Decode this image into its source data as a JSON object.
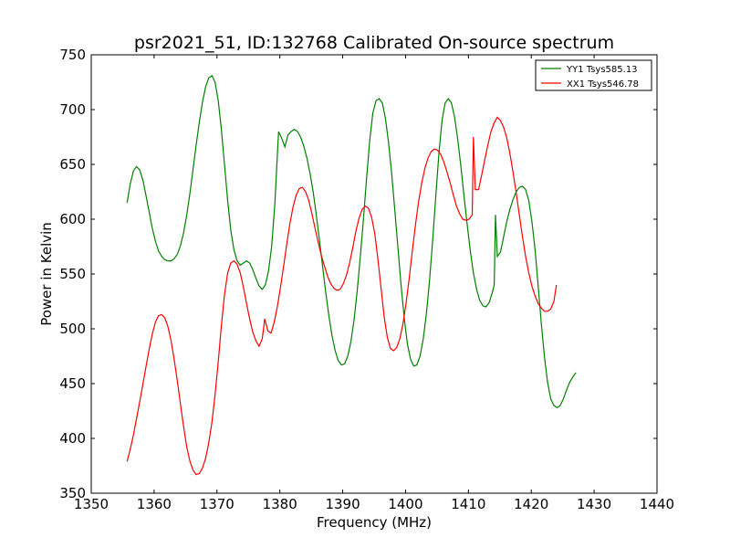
{
  "chart_data": {
    "type": "line",
    "title": "psr2021_51, ID:132768 Calibrated On-source spectrum",
    "xlabel": "Frequency (MHz)",
    "ylabel": "Power in Kelvin",
    "xlim": [
      1350,
      1440
    ],
    "ylim": [
      350,
      750
    ],
    "xticks": [
      1350,
      1360,
      1370,
      1380,
      1390,
      1400,
      1410,
      1420,
      1430,
      1440
    ],
    "yticks": [
      350,
      400,
      450,
      500,
      550,
      600,
      650,
      700,
      750
    ],
    "grid": false,
    "legend_position": "top-right",
    "series": [
      {
        "name": "YY1 Tsys585.13",
        "color": "#008000",
        "points": [
          [
            1355.7,
            615
          ],
          [
            1356.2,
            632
          ],
          [
            1356.7,
            644
          ],
          [
            1357.2,
            648
          ],
          [
            1357.7,
            645
          ],
          [
            1358.2,
            636
          ],
          [
            1358.7,
            622
          ],
          [
            1359.2,
            607
          ],
          [
            1359.7,
            592
          ],
          [
            1360.2,
            580
          ],
          [
            1360.7,
            571
          ],
          [
            1361.2,
            566
          ],
          [
            1361.7,
            563
          ],
          [
            1362.2,
            562
          ],
          [
            1362.7,
            562
          ],
          [
            1363.2,
            564
          ],
          [
            1363.7,
            568
          ],
          [
            1364.2,
            576
          ],
          [
            1364.7,
            588
          ],
          [
            1365.2,
            604
          ],
          [
            1365.7,
            624
          ],
          [
            1366.2,
            646
          ],
          [
            1366.7,
            668
          ],
          [
            1367.2,
            689
          ],
          [
            1367.7,
            707
          ],
          [
            1368.2,
            721
          ],
          [
            1368.7,
            729
          ],
          [
            1369.2,
            731
          ],
          [
            1369.7,
            725
          ],
          [
            1370.2,
            708
          ],
          [
            1370.7,
            682
          ],
          [
            1371.2,
            650
          ],
          [
            1371.7,
            617
          ],
          [
            1372.2,
            590
          ],
          [
            1372.7,
            572
          ],
          [
            1373.2,
            562
          ],
          [
            1373.7,
            558
          ],
          [
            1374.2,
            560
          ],
          [
            1374.7,
            562
          ],
          [
            1375.2,
            560
          ],
          [
            1375.7,
            554
          ],
          [
            1376.2,
            546
          ],
          [
            1376.7,
            539
          ],
          [
            1377.2,
            536
          ],
          [
            1377.7,
            540
          ],
          [
            1378.2,
            553
          ],
          [
            1378.7,
            575
          ],
          [
            1379.2,
            614
          ],
          [
            1379.8,
            680
          ],
          [
            1380.3,
            674
          ],
          [
            1380.8,
            666
          ],
          [
            1381.3,
            677
          ],
          [
            1381.8,
            680
          ],
          [
            1382.3,
            682
          ],
          [
            1382.8,
            680
          ],
          [
            1383.3,
            675
          ],
          [
            1383.8,
            667
          ],
          [
            1384.3,
            656
          ],
          [
            1384.8,
            642
          ],
          [
            1385.3,
            625
          ],
          [
            1385.8,
            604
          ],
          [
            1386.3,
            581
          ],
          [
            1386.8,
            557
          ],
          [
            1387.3,
            533
          ],
          [
            1387.8,
            512
          ],
          [
            1388.3,
            494
          ],
          [
            1388.8,
            480
          ],
          [
            1389.3,
            471
          ],
          [
            1389.8,
            467
          ],
          [
            1390.3,
            468
          ],
          [
            1390.8,
            475
          ],
          [
            1391.3,
            488
          ],
          [
            1391.8,
            508
          ],
          [
            1392.3,
            534
          ],
          [
            1392.8,
            565
          ],
          [
            1393.3,
            600
          ],
          [
            1393.8,
            637
          ],
          [
            1394.3,
            672
          ],
          [
            1394.8,
            697
          ],
          [
            1395.3,
            708
          ],
          [
            1395.8,
            710
          ],
          [
            1396.3,
            706
          ],
          [
            1396.8,
            692
          ],
          [
            1397.3,
            670
          ],
          [
            1397.8,
            641
          ],
          [
            1398.3,
            608
          ],
          [
            1398.8,
            573
          ],
          [
            1399.3,
            539
          ],
          [
            1399.8,
            509
          ],
          [
            1400.3,
            486
          ],
          [
            1400.8,
            472
          ],
          [
            1401.3,
            466
          ],
          [
            1401.8,
            467
          ],
          [
            1402.3,
            475
          ],
          [
            1402.8,
            490
          ],
          [
            1403.3,
            513
          ],
          [
            1403.8,
            543
          ],
          [
            1404.3,
            580
          ],
          [
            1404.8,
            620
          ],
          [
            1405.3,
            660
          ],
          [
            1405.8,
            690
          ],
          [
            1406.3,
            706
          ],
          [
            1406.8,
            710
          ],
          [
            1407.3,
            706
          ],
          [
            1407.8,
            693
          ],
          [
            1408.3,
            673
          ],
          [
            1408.8,
            648
          ],
          [
            1409.3,
            621
          ],
          [
            1409.8,
            595
          ],
          [
            1410.3,
            571
          ],
          [
            1410.8,
            551
          ],
          [
            1411.3,
            536
          ],
          [
            1411.8,
            526
          ],
          [
            1412.3,
            521
          ],
          [
            1412.8,
            520
          ],
          [
            1413.3,
            524
          ],
          [
            1413.8,
            533
          ],
          [
            1414.1,
            540
          ],
          [
            1414.3,
            604
          ],
          [
            1414.6,
            566
          ],
          [
            1415.1,
            570
          ],
          [
            1415.6,
            584
          ],
          [
            1416.1,
            598
          ],
          [
            1416.6,
            609
          ],
          [
            1417.1,
            618
          ],
          [
            1417.6,
            625
          ],
          [
            1418.1,
            629
          ],
          [
            1418.6,
            630
          ],
          [
            1419.1,
            627
          ],
          [
            1419.6,
            617
          ],
          [
            1420.1,
            598
          ],
          [
            1420.6,
            572
          ],
          [
            1421.1,
            539
          ],
          [
            1421.6,
            505
          ],
          [
            1422.1,
            474
          ],
          [
            1422.6,
            451
          ],
          [
            1423.1,
            436
          ],
          [
            1423.6,
            430
          ],
          [
            1424.1,
            428
          ],
          [
            1424.6,
            430
          ],
          [
            1425.1,
            436
          ],
          [
            1425.6,
            444
          ],
          [
            1426.1,
            451
          ],
          [
            1426.6,
            456
          ],
          [
            1427.1,
            460
          ]
        ]
      },
      {
        "name": "XX1 Tsys546.78",
        "color": "#ff0000",
        "points": [
          [
            1355.7,
            379
          ],
          [
            1356.2,
            390
          ],
          [
            1356.7,
            403
          ],
          [
            1357.2,
            418
          ],
          [
            1357.7,
            433
          ],
          [
            1358.2,
            449
          ],
          [
            1358.7,
            465
          ],
          [
            1359.2,
            481
          ],
          [
            1359.7,
            495
          ],
          [
            1360.2,
            506
          ],
          [
            1360.7,
            512
          ],
          [
            1361.2,
            513
          ],
          [
            1361.7,
            510
          ],
          [
            1362.2,
            502
          ],
          [
            1362.7,
            489
          ],
          [
            1363.2,
            472
          ],
          [
            1363.7,
            452
          ],
          [
            1364.2,
            431
          ],
          [
            1364.7,
            410
          ],
          [
            1365.2,
            392
          ],
          [
            1365.7,
            379
          ],
          [
            1366.2,
            371
          ],
          [
            1366.7,
            367
          ],
          [
            1367.2,
            368
          ],
          [
            1367.7,
            373
          ],
          [
            1368.2,
            382
          ],
          [
            1368.7,
            396
          ],
          [
            1369.2,
            415
          ],
          [
            1369.7,
            440
          ],
          [
            1370.2,
            470
          ],
          [
            1370.7,
            503
          ],
          [
            1371.2,
            531
          ],
          [
            1371.7,
            551
          ],
          [
            1372.2,
            560
          ],
          [
            1372.7,
            562
          ],
          [
            1373.2,
            559
          ],
          [
            1373.7,
            551
          ],
          [
            1374.2,
            538
          ],
          [
            1374.7,
            523
          ],
          [
            1375.2,
            509
          ],
          [
            1375.7,
            497
          ],
          [
            1376.2,
            489
          ],
          [
            1376.7,
            484
          ],
          [
            1377.2,
            491
          ],
          [
            1377.6,
            509
          ],
          [
            1378.1,
            498
          ],
          [
            1378.6,
            496
          ],
          [
            1379.1,
            506
          ],
          [
            1379.6,
            520
          ],
          [
            1380.1,
            538
          ],
          [
            1380.6,
            557
          ],
          [
            1381.1,
            577
          ],
          [
            1381.6,
            596
          ],
          [
            1382.1,
            611
          ],
          [
            1382.6,
            622
          ],
          [
            1383.1,
            628
          ],
          [
            1383.6,
            629
          ],
          [
            1384.1,
            625
          ],
          [
            1384.6,
            617
          ],
          [
            1385.1,
            605
          ],
          [
            1385.6,
            592
          ],
          [
            1386.1,
            579
          ],
          [
            1386.6,
            567
          ],
          [
            1387.1,
            557
          ],
          [
            1387.6,
            548
          ],
          [
            1388.1,
            541
          ],
          [
            1388.6,
            537
          ],
          [
            1389.1,
            535
          ],
          [
            1389.6,
            536
          ],
          [
            1390.1,
            541
          ],
          [
            1390.6,
            549
          ],
          [
            1391.1,
            560
          ],
          [
            1391.6,
            574
          ],
          [
            1392.1,
            589
          ],
          [
            1392.6,
            601
          ],
          [
            1393.1,
            609
          ],
          [
            1393.6,
            612
          ],
          [
            1394.1,
            610
          ],
          [
            1394.6,
            602
          ],
          [
            1395.1,
            587
          ],
          [
            1395.6,
            564
          ],
          [
            1396.1,
            537
          ],
          [
            1396.6,
            511
          ],
          [
            1397.1,
            492
          ],
          [
            1397.6,
            482
          ],
          [
            1398.1,
            480
          ],
          [
            1398.6,
            483
          ],
          [
            1399.1,
            491
          ],
          [
            1399.6,
            505
          ],
          [
            1400.1,
            524
          ],
          [
            1400.6,
            547
          ],
          [
            1401.1,
            572
          ],
          [
            1401.6,
            596
          ],
          [
            1402.1,
            617
          ],
          [
            1402.6,
            634
          ],
          [
            1403.1,
            647
          ],
          [
            1403.6,
            656
          ],
          [
            1404.1,
            662
          ],
          [
            1404.6,
            664
          ],
          [
            1405.1,
            663
          ],
          [
            1405.6,
            659
          ],
          [
            1406.1,
            652
          ],
          [
            1406.6,
            643
          ],
          [
            1407.1,
            633
          ],
          [
            1407.6,
            622
          ],
          [
            1408.1,
            612
          ],
          [
            1408.6,
            605
          ],
          [
            1409.1,
            600
          ],
          [
            1409.6,
            599
          ],
          [
            1410.1,
            600
          ],
          [
            1410.6,
            604
          ],
          [
            1410.8,
            675
          ],
          [
            1411.1,
            627
          ],
          [
            1411.6,
            627
          ],
          [
            1412.1,
            640
          ],
          [
            1412.6,
            654
          ],
          [
            1413.1,
            668
          ],
          [
            1413.6,
            680
          ],
          [
            1414.1,
            688
          ],
          [
            1414.6,
            693
          ],
          [
            1415.1,
            690
          ],
          [
            1415.6,
            684
          ],
          [
            1416.1,
            674
          ],
          [
            1416.6,
            660
          ],
          [
            1417.1,
            643
          ],
          [
            1417.6,
            624
          ],
          [
            1418.1,
            604
          ],
          [
            1418.6,
            584
          ],
          [
            1419.1,
            566
          ],
          [
            1419.6,
            551
          ],
          [
            1420.1,
            539
          ],
          [
            1420.6,
            530
          ],
          [
            1421.1,
            523
          ],
          [
            1421.6,
            519
          ],
          [
            1422.1,
            516
          ],
          [
            1422.6,
            516
          ],
          [
            1423.1,
            518
          ],
          [
            1423.6,
            525
          ],
          [
            1424.0,
            540
          ]
        ]
      }
    ]
  }
}
